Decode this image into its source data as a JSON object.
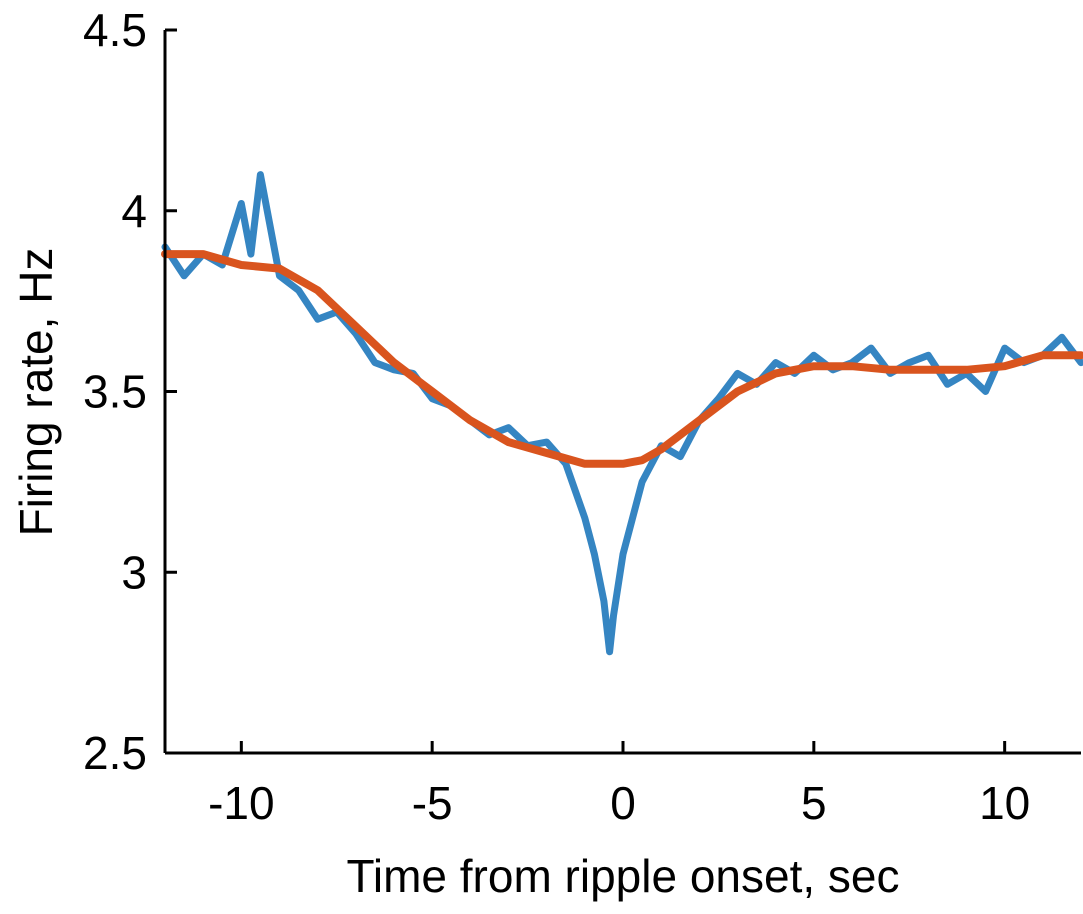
{
  "chart_data": {
    "type": "line",
    "title": "",
    "xlabel": "Time from ripple onset, sec",
    "ylabel": "Firing rate, Hz",
    "xlim": [
      -12,
      12
    ],
    "ylim": [
      2.5,
      4.5
    ],
    "x_ticks": [
      -10,
      -5,
      0,
      5,
      10
    ],
    "x_tick_labels": [
      "-10",
      "-5",
      "0",
      "5",
      "10"
    ],
    "y_ticks": [
      2.5,
      3,
      3.5,
      4,
      4.5
    ],
    "y_tick_labels": [
      "2.5",
      "3",
      "3.5",
      "4",
      "4.5"
    ],
    "grid": false,
    "legend": "none",
    "series": [
      {
        "color": "#3585c2",
        "x": [
          -12,
          -11.5,
          -11,
          -10.5,
          -10,
          -9.75,
          -9.5,
          -9,
          -8.5,
          -8,
          -7.5,
          -7,
          -6.5,
          -6,
          -5.5,
          -5,
          -4.5,
          -4,
          -3.5,
          -3,
          -2.5,
          -2,
          -1.5,
          -1,
          -0.75,
          -0.5,
          -0.35,
          -0.25,
          0,
          0.5,
          1,
          1.5,
          2,
          2.5,
          3,
          3.5,
          4,
          4.5,
          5,
          5.5,
          6,
          6.5,
          7,
          7.5,
          8,
          8.5,
          9,
          9.5,
          10,
          10.5,
          11,
          11.5,
          12
        ],
        "y": [
          3.9,
          3.82,
          3.88,
          3.85,
          4.02,
          3.88,
          4.1,
          3.82,
          3.78,
          3.7,
          3.72,
          3.66,
          3.58,
          3.56,
          3.55,
          3.48,
          3.46,
          3.42,
          3.38,
          3.4,
          3.35,
          3.36,
          3.3,
          3.15,
          3.05,
          2.92,
          2.78,
          2.88,
          3.05,
          3.25,
          3.35,
          3.32,
          3.42,
          3.48,
          3.55,
          3.52,
          3.58,
          3.55,
          3.6,
          3.56,
          3.58,
          3.62,
          3.55,
          3.58,
          3.6,
          3.52,
          3.55,
          3.5,
          3.62,
          3.58,
          3.6,
          3.65,
          3.58
        ]
      },
      {
        "color": "#d9541e",
        "x": [
          -12,
          -11,
          -10,
          -9,
          -8,
          -7,
          -6,
          -5,
          -4,
          -3,
          -2,
          -1,
          -0.5,
          0,
          0.5,
          1,
          2,
          3,
          4,
          5,
          6,
          7,
          8,
          9,
          10,
          11,
          12
        ],
        "y": [
          3.88,
          3.88,
          3.85,
          3.84,
          3.78,
          3.68,
          3.58,
          3.5,
          3.42,
          3.36,
          3.33,
          3.3,
          3.3,
          3.3,
          3.31,
          3.34,
          3.42,
          3.5,
          3.55,
          3.57,
          3.57,
          3.56,
          3.56,
          3.56,
          3.57,
          3.6,
          3.6
        ]
      }
    ]
  }
}
